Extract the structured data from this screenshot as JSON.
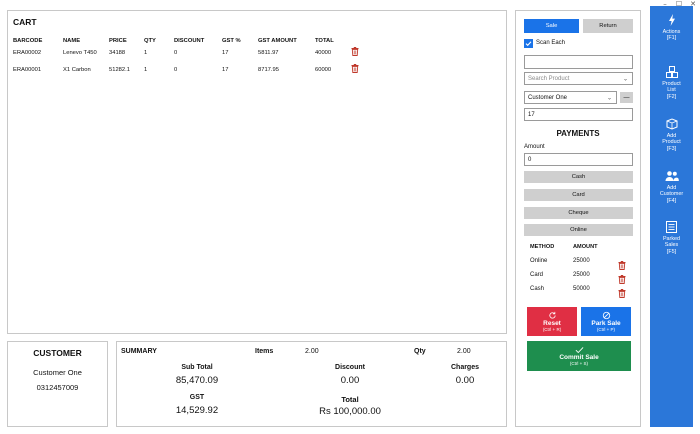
{
  "window_controls": [
    "–",
    "☐",
    "✕"
  ],
  "cart": {
    "title": "CART",
    "columns": [
      "BARCODE",
      "NAME",
      "PRICE",
      "QTY",
      "DISCOUNT",
      "GST %",
      "GST AMOUNT",
      "TOTAL"
    ],
    "rows": [
      {
        "barcode": "ERA00002",
        "name": "Lenevo T450",
        "price": "34188",
        "qty": "1",
        "discount": "0",
        "gst": "17",
        "gst_amount": "5811.97",
        "total": "40000"
      },
      {
        "barcode": "ERA00001",
        "name": "X1 Carbon",
        "price": "51282.1",
        "qty": "1",
        "discount": "0",
        "gst": "17",
        "gst_amount": "8717.95",
        "total": "60000"
      }
    ]
  },
  "customer": {
    "title": "CUSTOMER",
    "name": "Customer One",
    "phone": "0312457009"
  },
  "summary": {
    "title": "SUMMARY",
    "items_label": "Items",
    "items_value": "2.00",
    "qty_label": "Qty",
    "qty_value": "2.00",
    "subtotal_label": "Sub Total",
    "subtotal_value": "85,470.09",
    "discount_label": "Discount",
    "discount_value": "0.00",
    "charges_label": "Charges",
    "charges_value": "0.00",
    "gst_label": "GST",
    "gst_value": "14,529.92",
    "total_label": "Total",
    "total_value": "Rs 100,000.00"
  },
  "side": {
    "sale_label": "Sale",
    "return_label": "Return",
    "scan_each_label": "Scan Each",
    "scan_each_checked": true,
    "barcode_value": "",
    "search_placeholder": "Search Product",
    "customer_selected": "Customer One",
    "customer_minus": "—",
    "gst_value": "17",
    "payments_title": "PAYMENTS",
    "amount_label": "Amount",
    "amount_value": "0",
    "pay_buttons": [
      "Cash",
      "Card",
      "Cheque",
      "Online"
    ],
    "method_header": "METHOD",
    "amount_header": "AMOUNT",
    "payments": [
      {
        "method": "Online",
        "amount": "25000"
      },
      {
        "method": "Card",
        "amount": "25000"
      },
      {
        "method": "Cash",
        "amount": "50000"
      }
    ],
    "reset_label": "Reset",
    "reset_shortcut": "(Ctrl + R)",
    "park_label": "Park Sale",
    "park_shortcut": "(Ctrl + P)",
    "commit_label": "Commit Sale",
    "commit_shortcut": "(Ctrl + S)"
  },
  "rail": [
    {
      "icon": "lightning-icon",
      "line1": "Actions",
      "line2": "",
      "key": "[F1]"
    },
    {
      "icon": "boxes-icon",
      "line1": "Product",
      "line2": "List",
      "key": "[F2]"
    },
    {
      "icon": "add-box-icon",
      "line1": "Add",
      "line2": "Product",
      "key": "[F3]"
    },
    {
      "icon": "add-user-icon",
      "line1": "Add",
      "line2": "Customer",
      "key": "[F4]"
    },
    {
      "icon": "list-icon",
      "line1": "Parked",
      "line2": "Sales",
      "key": "[F5]"
    }
  ],
  "colors": {
    "accent": "#1a73e8",
    "rail": "#2b77d9",
    "reset": "#e02f44",
    "park": "#1a73e8",
    "commit": "#1e8e4e",
    "trash": "#c0392b"
  }
}
